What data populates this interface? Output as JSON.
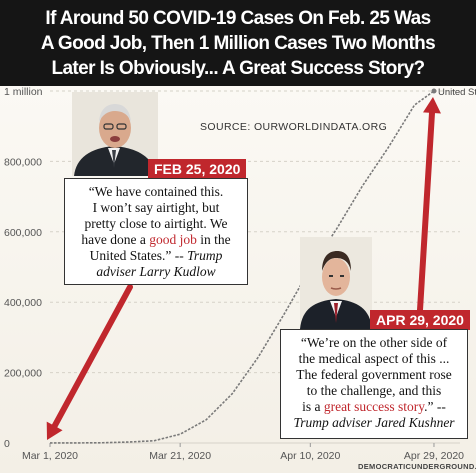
{
  "headline": {
    "lines": [
      "If Around 50 COVID-19 Cases On Feb. 25 Was",
      "A Good Job, Then 1 Million Cases Two Months",
      "Later Is Obviously...  A Great Success Story?"
    ]
  },
  "source": "SOURCE: OURWORLDINDATA.ORG",
  "chart_data": {
    "type": "line",
    "xlabel": "",
    "ylabel": "",
    "ylim": [
      0,
      1000000
    ],
    "xlim": [
      "2020-03-01",
      "2020-05-03"
    ],
    "grid": true,
    "y_ticks": [
      {
        "value": 0,
        "label": "0"
      },
      {
        "value": 200000,
        "label": "200,000"
      },
      {
        "value": 400000,
        "label": "400,000"
      },
      {
        "value": 600000,
        "label": "600,000"
      },
      {
        "value": 800000,
        "label": "800,000"
      },
      {
        "value": 1000000,
        "label": "1 million"
      }
    ],
    "x_ticks": [
      {
        "value": "2020-03-01",
        "label": "Mar 1, 2020"
      },
      {
        "value": "2020-03-21",
        "label": "Mar 21, 2020"
      },
      {
        "value": "2020-04-10",
        "label": "Apr 10, 2020"
      },
      {
        "value": "2020-04-29",
        "label": "Apr 29, 2020"
      }
    ],
    "series": [
      {
        "name": "United States",
        "color": "#7a7a7a",
        "points": [
          {
            "x": "2020-03-01",
            "y": 75
          },
          {
            "x": "2020-03-05",
            "y": 230
          },
          {
            "x": "2020-03-09",
            "y": 700
          },
          {
            "x": "2020-03-13",
            "y": 2700
          },
          {
            "x": "2020-03-17",
            "y": 6400
          },
          {
            "x": "2020-03-21",
            "y": 25000
          },
          {
            "x": "2020-03-25",
            "y": 66000
          },
          {
            "x": "2020-03-29",
            "y": 140000
          },
          {
            "x": "2020-04-02",
            "y": 244000
          },
          {
            "x": "2020-04-06",
            "y": 367000
          },
          {
            "x": "2020-04-10",
            "y": 496000
          },
          {
            "x": "2020-04-14",
            "y": 607000
          },
          {
            "x": "2020-04-18",
            "y": 730000
          },
          {
            "x": "2020-04-22",
            "y": 840000
          },
          {
            "x": "2020-04-26",
            "y": 960000
          },
          {
            "x": "2020-04-29",
            "y": 1040000
          }
        ]
      }
    ],
    "annotations": [
      {
        "date_tag": "FEB 25, 2020",
        "quote_lines": [
          "“We have contained this.",
          "I won’t say airtight, but",
          "pretty close to airtight. We"
        ],
        "quote_pre": "have done a ",
        "quote_highlight": "good job",
        "quote_post": " in the",
        "quote_line5_pre": "United States.” -- ",
        "quote_attrib_a": "Trump",
        "quote_attrib_b": "adviser Larry Kudlow",
        "arrow_points_to": {
          "x": "2020-03-01",
          "y": 0
        }
      },
      {
        "date_tag": "APR 29, 2020",
        "quote_lines": [
          "“We’re on the other side of",
          "the medical aspect of this ...",
          "The federal government rose",
          "to the challenge, and this"
        ],
        "quote_pre": "is a ",
        "quote_highlight": "great success story",
        "quote_post": ".”  --",
        "quote_attrib": "Trump adviser Jared Kushner",
        "arrow_points_to": {
          "x": "2020-04-29",
          "y": 1000000
        }
      }
    ]
  },
  "watermark": "DEMOCRATICUNDERGROUND.COM",
  "colors": {
    "accent": "#c0272d",
    "header_bg": "#151515",
    "line": "#7a7a7a",
    "background": "#faf8f3"
  }
}
